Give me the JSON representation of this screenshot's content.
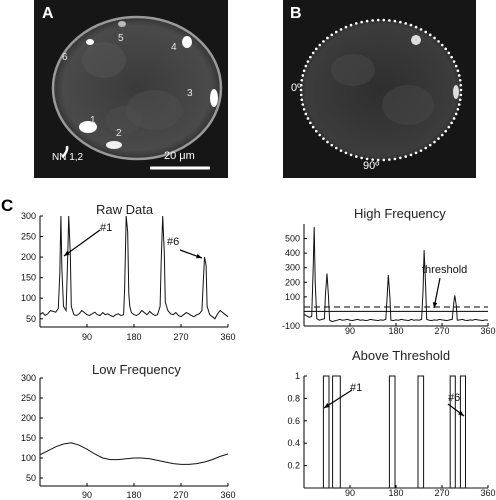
{
  "panels": {
    "a": {
      "letter": "A",
      "cell_labels": [
        "1",
        "2",
        "3",
        "4",
        "5",
        "6"
      ],
      "nn_label": "NN 1,2",
      "scale_bar": "20 μm"
    },
    "b": {
      "letter": "B",
      "angle_0": "0º",
      "angle_90": "90º"
    },
    "c_letter": "C"
  },
  "chart_data": [
    {
      "id": "raw",
      "type": "line",
      "title": "Raw Data",
      "xlabel": "",
      "ylabel": "",
      "xlim": [
        0,
        360
      ],
      "ylim": [
        30,
        300
      ],
      "xticks": [
        90,
        180,
        270,
        360
      ],
      "yticks": [
        50,
        100,
        150,
        200,
        250,
        300
      ],
      "annotations": [
        "#1",
        "#6"
      ],
      "x": [
        0,
        5,
        10,
        15,
        20,
        25,
        30,
        35,
        38,
        40,
        42,
        45,
        50,
        53,
        55,
        58,
        60,
        65,
        70,
        75,
        80,
        85,
        90,
        95,
        100,
        105,
        110,
        115,
        120,
        125,
        130,
        135,
        140,
        145,
        150,
        155,
        160,
        162,
        165,
        168,
        170,
        172,
        175,
        180,
        185,
        190,
        195,
        200,
        205,
        210,
        215,
        220,
        225,
        230,
        232,
        235,
        238,
        240,
        245,
        250,
        255,
        260,
        265,
        270,
        275,
        280,
        285,
        290,
        295,
        300,
        305,
        310,
        313,
        315,
        318,
        320,
        325,
        330,
        335,
        340,
        345,
        350,
        355,
        360
      ],
      "y": [
        60,
        65,
        58,
        62,
        70,
        68,
        66,
        75,
        160,
        300,
        170,
        80,
        70,
        200,
        300,
        210,
        80,
        60,
        58,
        62,
        70,
        65,
        60,
        58,
        62,
        66,
        60,
        58,
        65,
        60,
        62,
        58,
        55,
        60,
        62,
        58,
        60,
        120,
        300,
        260,
        110,
        80,
        65,
        60,
        58,
        62,
        70,
        65,
        60,
        68,
        62,
        58,
        60,
        80,
        190,
        300,
        210,
        90,
        70,
        62,
        60,
        65,
        58,
        55,
        60,
        65,
        62,
        58,
        55,
        60,
        62,
        70,
        150,
        200,
        180,
        80,
        60,
        55,
        50,
        62,
        70,
        65,
        60,
        55
      ]
    },
    {
      "id": "high",
      "type": "line",
      "title": "High Frequency",
      "xlabel": "",
      "ylabel": "",
      "xlim": [
        0,
        360
      ],
      "ylim": [
        -100,
        600
      ],
      "xticks": [
        90,
        180,
        270,
        360
      ],
      "yticks": [
        -100,
        100,
        200,
        300,
        400,
        500
      ],
      "threshold": 30,
      "annotations": [
        "threshold"
      ],
      "x": [
        0,
        5,
        10,
        15,
        18,
        20,
        22,
        25,
        30,
        35,
        40,
        42,
        45,
        48,
        50,
        55,
        60,
        65,
        70,
        75,
        80,
        85,
        90,
        95,
        100,
        105,
        110,
        115,
        120,
        125,
        130,
        135,
        140,
        145,
        150,
        155,
        160,
        163,
        165,
        168,
        170,
        175,
        180,
        185,
        190,
        195,
        200,
        205,
        210,
        215,
        220,
        225,
        230,
        233,
        235,
        238,
        240,
        245,
        250,
        255,
        260,
        265,
        270,
        275,
        280,
        285,
        290,
        293,
        295,
        298,
        300,
        305,
        310,
        315,
        320,
        325,
        330,
        335,
        340,
        345,
        350,
        355,
        360
      ],
      "y": [
        -20,
        -30,
        -40,
        -35,
        300,
        580,
        200,
        -50,
        -60,
        -55,
        -50,
        120,
        260,
        100,
        -60,
        -70,
        -65,
        -60,
        -55,
        -60,
        -58,
        -55,
        -60,
        -62,
        -58,
        -55,
        -60,
        -58,
        -62,
        -60,
        -55,
        -58,
        -60,
        -62,
        -58,
        -60,
        -55,
        120,
        250,
        100,
        -60,
        -62,
        -58,
        -60,
        -55,
        -58,
        -60,
        -62,
        -55,
        -60,
        -58,
        -60,
        -55,
        150,
        420,
        180,
        -55,
        -60,
        -62,
        -58,
        -60,
        -55,
        -58,
        -60,
        -62,
        -58,
        -55,
        60,
        110,
        40,
        -60,
        -58,
        -55,
        -60,
        -62,
        -58,
        -60,
        -55,
        -58,
        -60,
        -62,
        -58,
        -60
      ]
    },
    {
      "id": "low",
      "type": "line",
      "title": "Low Frequency",
      "xlabel": "",
      "ylabel": "",
      "xlim": [
        0,
        360
      ],
      "ylim": [
        30,
        300
      ],
      "xticks": [
        90,
        180,
        270,
        360
      ],
      "yticks": [
        50,
        100,
        150,
        200,
        250,
        300
      ],
      "x": [
        0,
        15,
        30,
        45,
        60,
        75,
        90,
        105,
        120,
        135,
        150,
        165,
        180,
        195,
        210,
        225,
        240,
        255,
        270,
        285,
        300,
        315,
        330,
        345,
        360
      ],
      "y": [
        108,
        118,
        128,
        135,
        138,
        132,
        122,
        110,
        100,
        96,
        96,
        98,
        100,
        100,
        98,
        94,
        90,
        86,
        84,
        84,
        86,
        90,
        96,
        104,
        110
      ]
    },
    {
      "id": "above",
      "type": "line",
      "title": "Above Threshold",
      "xlabel": "",
      "ylabel": "",
      "xlim": [
        0,
        360
      ],
      "ylim": [
        0,
        1
      ],
      "xticks": [
        90,
        180,
        270,
        360
      ],
      "yticks": [
        0.2,
        0.4,
        0.6,
        0.8,
        1
      ],
      "annotations": [
        "#1",
        "#6"
      ],
      "x": [
        0,
        38,
        38,
        49,
        49,
        56,
        56,
        71,
        71,
        167,
        167,
        178,
        178,
        223,
        223,
        234,
        234,
        286,
        286,
        296,
        296,
        306,
        306,
        316,
        316,
        360
      ],
      "y": [
        0,
        0,
        1,
        1,
        0,
        0,
        1,
        1,
        0,
        0,
        1,
        1,
        0,
        0,
        1,
        1,
        0,
        0,
        1,
        1,
        0,
        0,
        1,
        1,
        0,
        0
      ]
    }
  ]
}
